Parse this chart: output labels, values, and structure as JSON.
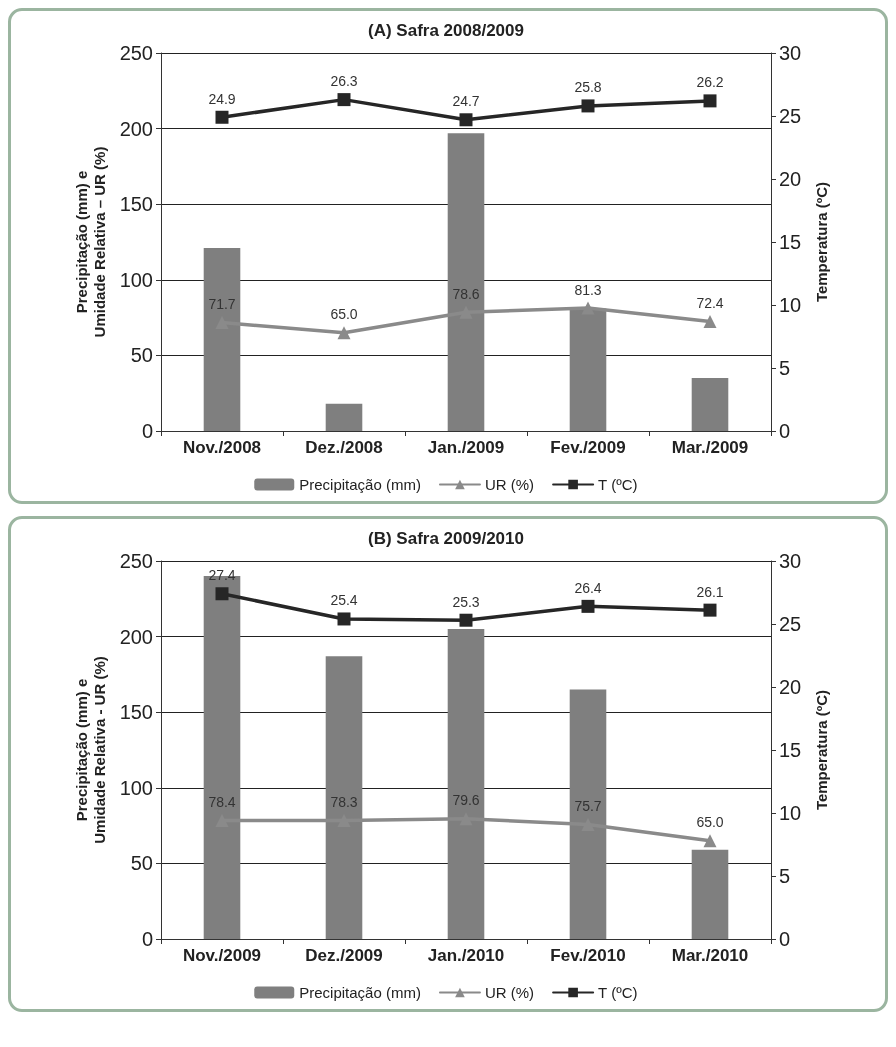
{
  "chart_data": [
    {
      "type": "bar",
      "title": "(A) Safra 2008/2009",
      "ylabel": "Precipitação (mm) e\nUmidade Relativa – UR (%)",
      "y2label": "Temperatura (ºC)",
      "categories": [
        "Nov./2008",
        "Dez./2008",
        "Jan./2009",
        "Fev./2009",
        "Mar./2009"
      ],
      "series": [
        {
          "name": "Precipitação (mm)",
          "color": "#7f7f7f",
          "values": [
            121,
            18,
            197,
            81,
            35
          ]
        },
        {
          "name": "UR (%)",
          "type": "line",
          "color": "#8a8a8a",
          "marker": "triangle",
          "values": [
            71.7,
            65.0,
            78.6,
            81.3,
            72.4
          ],
          "value_labels": [
            "71.7",
            "65.0",
            "78.6",
            "81.3",
            "72.4"
          ]
        },
        {
          "name": "T (ºC)",
          "type": "line",
          "axis": "y2",
          "color": "#262626",
          "marker": "square",
          "values": [
            24.9,
            26.3,
            24.7,
            25.8,
            26.2
          ],
          "value_labels": [
            "24.9",
            "26.3",
            "24.7",
            "25.8",
            "26.2"
          ]
        }
      ],
      "ylim": [
        0,
        250
      ],
      "yticks": [
        0,
        50,
        100,
        150,
        200,
        250
      ],
      "y2lim": [
        0,
        30
      ],
      "y2ticks": [
        0,
        5,
        10,
        15,
        20,
        25,
        30
      ],
      "grid": "y",
      "legend": "bottom"
    },
    {
      "type": "bar",
      "title": "(B) Safra 2009/2010",
      "ylabel": "Precipitação (mm) e\nUmidade Relativa - UR (%)",
      "y2label": "Temperatura (ºC)",
      "categories": [
        "Nov./2009",
        "Dez./2009",
        "Jan./2010",
        "Fev./2010",
        "Mar./2010"
      ],
      "series": [
        {
          "name": "Precipitação (mm)",
          "color": "#7f7f7f",
          "values": [
            240,
            187,
            205,
            165,
            59
          ]
        },
        {
          "name": "UR (%)",
          "type": "line",
          "color": "#8a8a8a",
          "marker": "triangle",
          "values": [
            78.4,
            78.3,
            79.6,
            75.7,
            65.0
          ],
          "value_labels": [
            "78.4",
            "78.3",
            "79.6",
            "75.7",
            "65.0"
          ]
        },
        {
          "name": "T (ºC)",
          "type": "line",
          "axis": "y2",
          "color": "#262626",
          "marker": "square",
          "values": [
            27.4,
            25.4,
            25.3,
            26.4,
            26.1
          ],
          "value_labels": [
            "27.4",
            "25.4",
            "25.3",
            "26.4",
            "26.1"
          ]
        }
      ],
      "ylim": [
        0,
        250
      ],
      "yticks": [
        0,
        50,
        100,
        150,
        200,
        250
      ],
      "y2lim": [
        0,
        30
      ],
      "y2ticks": [
        0,
        5,
        10,
        15,
        20,
        25,
        30
      ],
      "grid": "y",
      "legend": "bottom"
    }
  ]
}
